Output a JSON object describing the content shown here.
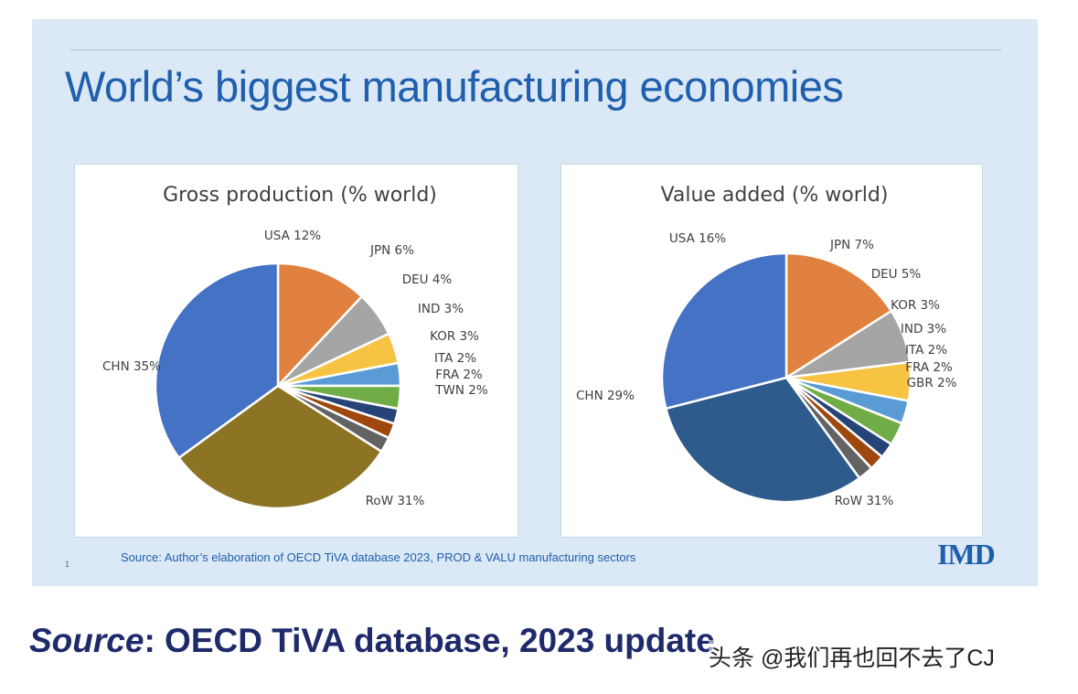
{
  "slide_title": "World’s biggest manufacturing economies",
  "slide_number": "1",
  "slide_source": "Source: Author’s elaboration of OECD   TiVA database 2023, PROD & VALU manufacturing sectors",
  "logo_text": "IMD",
  "caption": {
    "italic": "Source",
    "rest": ": OECD TiVA database, 2023 update"
  },
  "watermark": "头条 @我们再也回不去了CJ",
  "chart_data": [
    {
      "type": "pie",
      "title": "Gross production  (% world)",
      "slices": [
        {
          "label": "USA 12%",
          "value": 12,
          "color": "#e0813f"
        },
        {
          "label": "JPN 6%",
          "value": 6,
          "color": "#a5a5a5"
        },
        {
          "label": "DEU 4%",
          "value": 4,
          "color": "#f6c342"
        },
        {
          "label": "IND 3%",
          "value": 3,
          "color": "#5b9bd5"
        },
        {
          "label": "KOR 3%",
          "value": 3,
          "color": "#70ad47"
        },
        {
          "label": "ITA 2%",
          "value": 2,
          "color": "#264478"
        },
        {
          "label": "FRA 2%",
          "value": 2,
          "color": "#9e480e"
        },
        {
          "label": "TWN 2%",
          "value": 2,
          "color": "#636363"
        },
        {
          "label": "RoW 31%",
          "value": 31,
          "color": "#8d7324"
        },
        {
          "label": "CHN 35%",
          "value": 35,
          "color": "#4472c4"
        }
      ]
    },
    {
      "type": "pie",
      "title": "Value added (% world)",
      "slices": [
        {
          "label": "USA 16%",
          "value": 16,
          "color": "#e0813f"
        },
        {
          "label": "JPN 7%",
          "value": 7,
          "color": "#a5a5a5"
        },
        {
          "label": "DEU 5%",
          "value": 5,
          "color": "#f6c342"
        },
        {
          "label": "KOR 3%",
          "value": 3,
          "color": "#5b9bd5"
        },
        {
          "label": "IND 3%",
          "value": 3,
          "color": "#70ad47"
        },
        {
          "label": "ITA 2%",
          "value": 2,
          "color": "#264478"
        },
        {
          "label": "FRA 2%",
          "value": 2,
          "color": "#9e480e"
        },
        {
          "label": "GBR 2%",
          "value": 2,
          "color": "#636363"
        },
        {
          "label": "RoW 31%",
          "value": 31,
          "color": "#2e5a8c"
        },
        {
          "label": "CHN 29%",
          "value": 29,
          "color": "#4472c4"
        }
      ]
    }
  ]
}
